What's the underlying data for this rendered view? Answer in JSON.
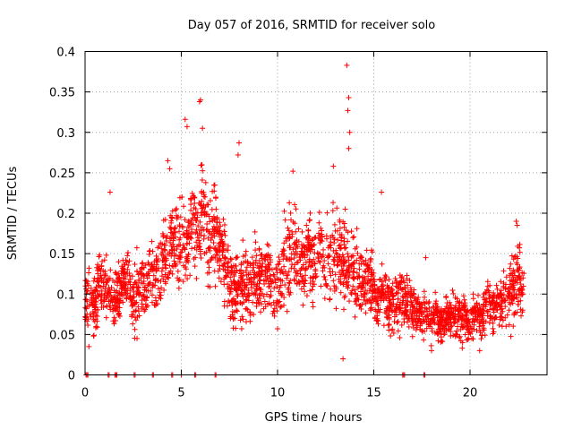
{
  "chart_data": {
    "type": "scatter",
    "title": "Day 057 of 2016, SRMTID for receiver solo",
    "xlabel": "GPS time / hours",
    "ylabel": "SRMTID / TECUs",
    "xlim": [
      0,
      24
    ],
    "ylim": [
      0,
      0.4
    ],
    "xticks": [
      0,
      5,
      10,
      15,
      20
    ],
    "xtick_labels": [
      "0",
      "5",
      "10",
      "15",
      "20"
    ],
    "yticks": [
      0,
      0.05,
      0.1,
      0.15,
      0.2,
      0.25,
      0.3,
      0.35,
      0.4
    ],
    "ytick_labels": [
      "0",
      "0.05",
      "0.1",
      "0.15",
      "0.2",
      "0.25",
      "0.3",
      "0.35",
      "0.4"
    ],
    "grid": true,
    "marker": "plus",
    "series_color": "#ff0000",
    "series": [
      {
        "name": "SRMTID",
        "trend": {
          "x": [
            0,
            0.5,
            1,
            1.5,
            2,
            2.5,
            3,
            3.5,
            4,
            4.5,
            5,
            5.5,
            6,
            6.5,
            7,
            7.5,
            8,
            8.5,
            9,
            9.5,
            10,
            10.5,
            11,
            11.5,
            12,
            12.5,
            13,
            13.5,
            14,
            14.5,
            15,
            15.5,
            16,
            16.5,
            17,
            17.5,
            18,
            18.5,
            19,
            19.5,
            20,
            20.5,
            21,
            21.5,
            22,
            22.5,
            22.8
          ],
          "y": [
            0.085,
            0.095,
            0.11,
            0.1,
            0.115,
            0.1,
            0.11,
            0.125,
            0.14,
            0.15,
            0.165,
            0.17,
            0.19,
            0.175,
            0.155,
            0.13,
            0.105,
            0.115,
            0.12,
            0.125,
            0.12,
            0.135,
            0.15,
            0.14,
            0.15,
            0.14,
            0.145,
            0.155,
            0.125,
            0.11,
            0.105,
            0.095,
            0.09,
            0.085,
            0.08,
            0.075,
            0.07,
            0.065,
            0.07,
            0.075,
            0.07,
            0.075,
            0.085,
            0.09,
            0.1,
            0.12,
            0.095
          ],
          "spread": [
            0.025,
            0.03,
            0.035,
            0.03,
            0.03,
            0.035,
            0.035,
            0.035,
            0.04,
            0.045,
            0.05,
            0.05,
            0.05,
            0.05,
            0.045,
            0.04,
            0.035,
            0.04,
            0.04,
            0.04,
            0.04,
            0.045,
            0.045,
            0.045,
            0.045,
            0.045,
            0.045,
            0.045,
            0.04,
            0.035,
            0.035,
            0.03,
            0.03,
            0.03,
            0.028,
            0.025,
            0.022,
            0.02,
            0.022,
            0.025,
            0.025,
            0.025,
            0.028,
            0.03,
            0.035,
            0.04,
            0.03
          ]
        },
        "notable_points": [
          {
            "x": 13.6,
            "y": 0.383
          },
          {
            "x": 13.7,
            "y": 0.343
          },
          {
            "x": 13.65,
            "y": 0.327
          },
          {
            "x": 13.75,
            "y": 0.3
          },
          {
            "x": 13.7,
            "y": 0.28
          },
          {
            "x": 5.95,
            "y": 0.338
          },
          {
            "x": 6.0,
            "y": 0.34
          },
          {
            "x": 5.2,
            "y": 0.316
          },
          {
            "x": 5.3,
            "y": 0.307
          },
          {
            "x": 6.1,
            "y": 0.305
          },
          {
            "x": 8.0,
            "y": 0.287
          },
          {
            "x": 7.95,
            "y": 0.272
          },
          {
            "x": 12.9,
            "y": 0.258
          },
          {
            "x": 10.8,
            "y": 0.252
          },
          {
            "x": 4.3,
            "y": 0.265
          },
          {
            "x": 4.4,
            "y": 0.255
          },
          {
            "x": 1.3,
            "y": 0.226
          },
          {
            "x": 15.4,
            "y": 0.226
          },
          {
            "x": 17.7,
            "y": 0.145
          },
          {
            "x": 13.4,
            "y": 0.02
          },
          {
            "x": 0.2,
            "y": 0.035
          },
          {
            "x": 2.7,
            "y": 0.045
          },
          {
            "x": 18.0,
            "y": 0.03
          },
          {
            "x": 20.5,
            "y": 0.03
          },
          {
            "x": 22.4,
            "y": 0.19
          },
          {
            "x": 22.45,
            "y": 0.185
          }
        ],
        "zero_points_x": [
          0.05,
          0.1,
          0.15,
          1.2,
          1.25,
          1.55,
          1.6,
          1.65,
          2.55,
          2.6,
          3.5,
          3.55,
          4.5,
          4.55,
          5.0,
          5.7,
          5.75,
          6.75,
          6.8,
          16.5,
          16.55,
          16.6,
          17.6,
          17.65
        ]
      }
    ]
  }
}
